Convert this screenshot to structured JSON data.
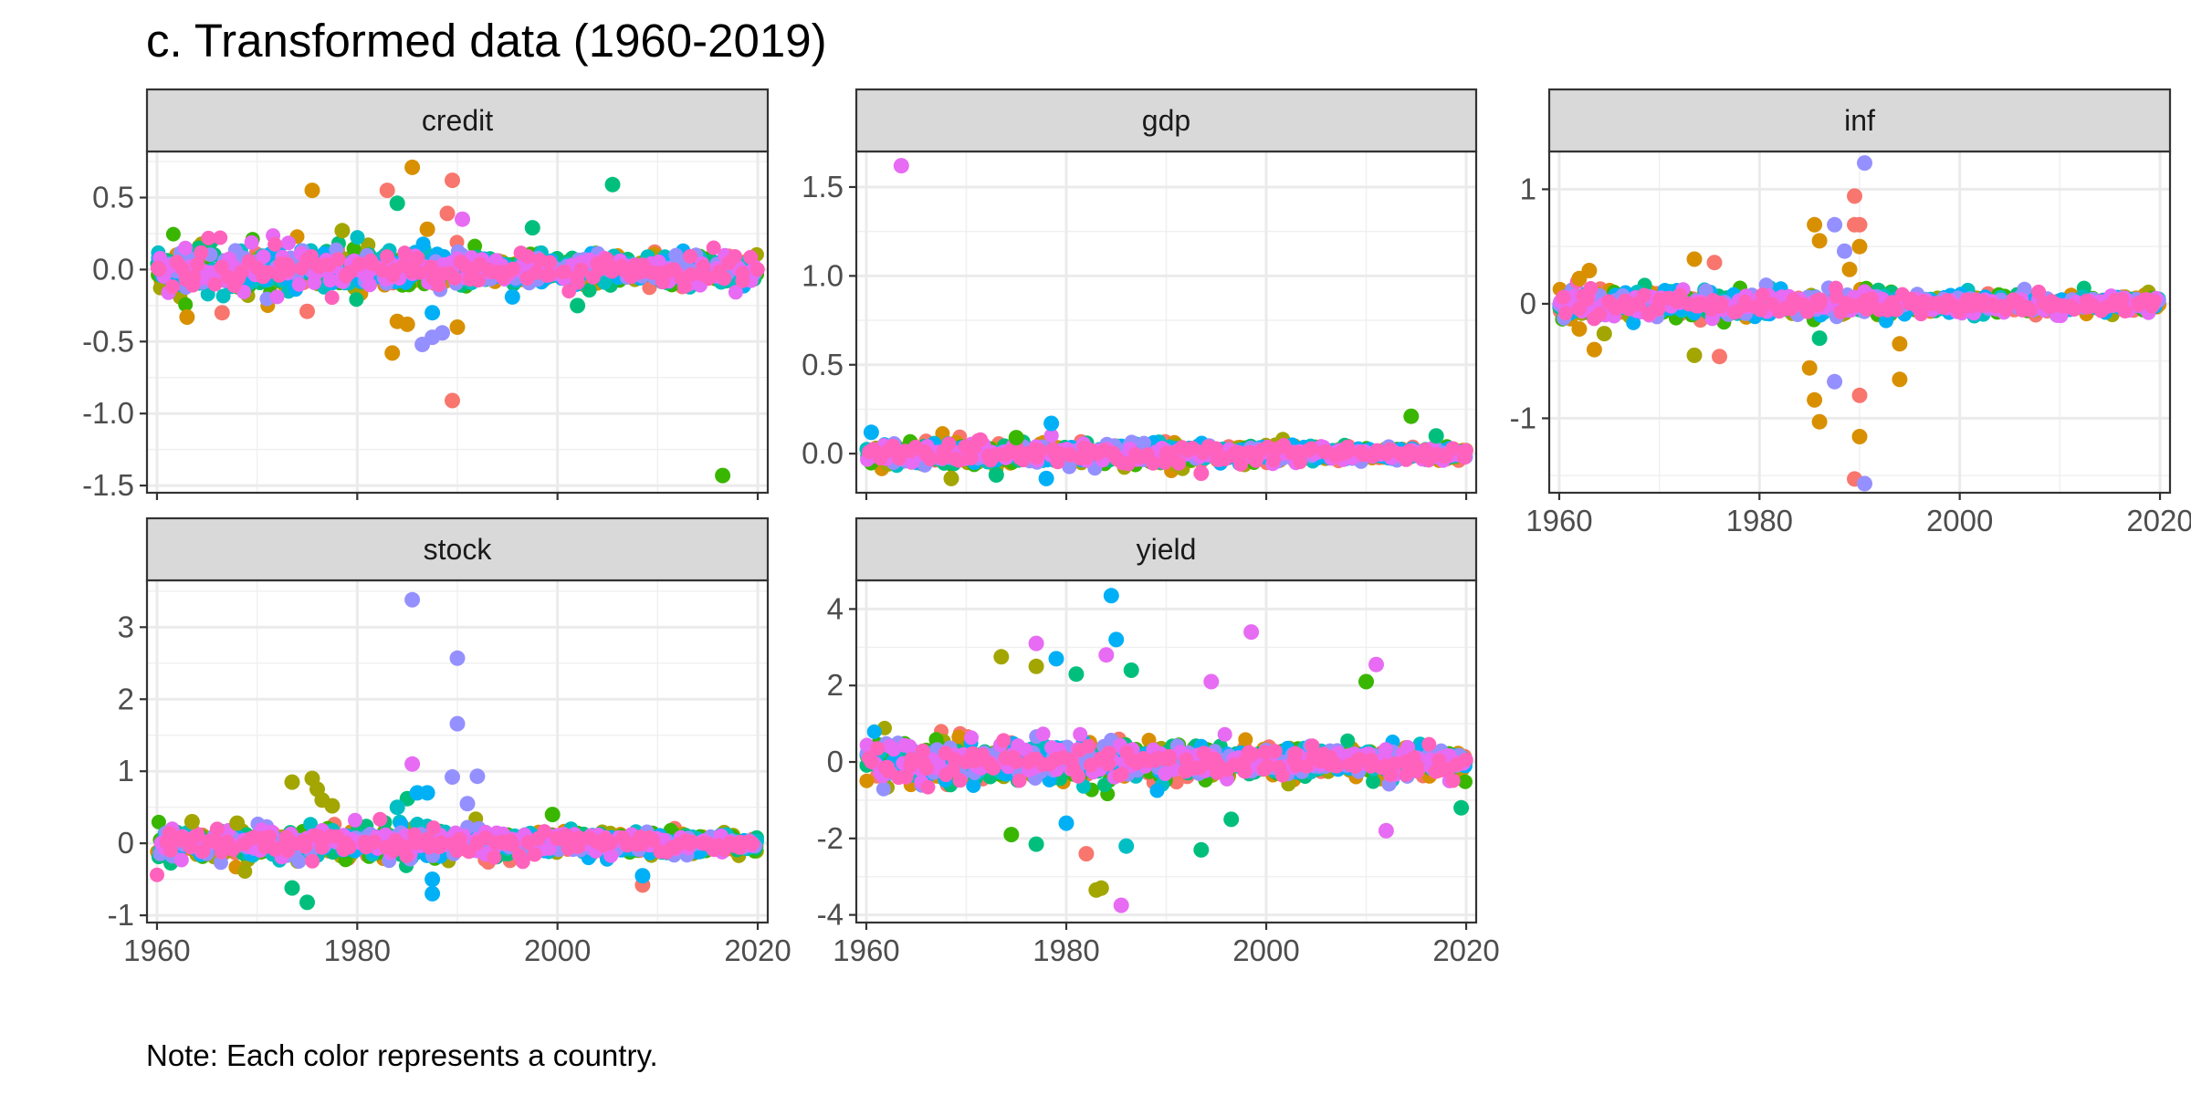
{
  "chart_data": {
    "type": "scatter",
    "title": "c. Transformed data (1960-2019)",
    "note": "Note: Each color represents a country.",
    "legend": "none",
    "grid": true,
    "x_ticks": [
      "1960",
      "1980",
      "2000",
      "2020"
    ],
    "x_tick_values": [
      1960,
      1980,
      2000,
      2020
    ],
    "xlim": [
      1959,
      2021
    ],
    "country_colors": [
      "#F8766D",
      "#D89000",
      "#A3A500",
      "#39B600",
      "#00BF7D",
      "#00BFC4",
      "#00B0F6",
      "#9590FF",
      "#E76BF3",
      "#FF62BC"
    ],
    "panels": [
      {
        "name": "credit",
        "ylim": [
          -1.55,
          0.82
        ],
        "y_ticks": [
          0.5,
          0.0,
          -0.5,
          -1.0,
          -1.5
        ],
        "y_tick_labels": [
          "0.5",
          "0.0",
          "-0.5",
          "-1.0",
          "-1.5"
        ],
        "band_sd": 0.07,
        "band_decay": 0.35,
        "outliers": [
          [
            1975.5,
            0.55,
            1
          ],
          [
            1983,
            0.55,
            0
          ],
          [
            1985.5,
            0.71,
            1
          ],
          [
            1989.5,
            0.62,
            0
          ],
          [
            2005.5,
            0.59,
            4
          ],
          [
            1984,
            0.46,
            4
          ],
          [
            1978.5,
            0.27,
            2
          ],
          [
            1997.5,
            0.29,
            4
          ],
          [
            1990.5,
            0.35,
            8
          ],
          [
            1989,
            0.39,
            0
          ],
          [
            1987,
            0.28,
            1
          ],
          [
            1963,
            -0.33,
            1
          ],
          [
            1983.5,
            -0.58,
            1
          ],
          [
            1986.5,
            -0.52,
            7
          ],
          [
            1987.5,
            -0.47,
            7
          ],
          [
            1988.5,
            -0.44,
            7
          ],
          [
            1987.5,
            -0.3,
            6
          ],
          [
            1989.5,
            -0.91,
            0
          ],
          [
            1990,
            -0.4,
            1
          ],
          [
            1985,
            -0.38,
            1
          ],
          [
            1984,
            -0.36,
            1
          ],
          [
            2016.5,
            -1.43,
            3
          ],
          [
            1966.5,
            -0.3,
            0
          ],
          [
            1975,
            -0.29,
            0
          ],
          [
            1995.5,
            -0.19,
            6
          ],
          [
            2002,
            -0.25,
            4
          ]
        ]
      },
      {
        "name": "gdp",
        "ylim": [
          -0.22,
          1.7
        ],
        "y_ticks": [
          1.5,
          1.0,
          0.5,
          0.0
        ],
        "y_tick_labels": [
          "1.5",
          "1.0",
          "0.5",
          "0.0"
        ],
        "band_sd": 0.028,
        "band_decay": 0.1,
        "outliers": [
          [
            1963.5,
            1.62,
            8
          ],
          [
            1978.5,
            0.17,
            6
          ],
          [
            2014.5,
            0.21,
            3
          ],
          [
            1960.5,
            0.12,
            6
          ],
          [
            1978,
            -0.14,
            6
          ],
          [
            1968.5,
            -0.14,
            2
          ],
          [
            1973,
            -0.12,
            4
          ],
          [
            1993.5,
            -0.11,
            9
          ],
          [
            2017,
            0.1,
            4
          ],
          [
            1975,
            0.09,
            3
          ]
        ]
      },
      {
        "name": "inf",
        "ylim": [
          -1.65,
          1.33
        ],
        "y_ticks": [
          1,
          0,
          -1
        ],
        "y_tick_labels": [
          "1",
          "0",
          "-1"
        ],
        "band_sd": 0.05,
        "band_decay": 0.4,
        "outliers": [
          [
            1962,
            0.22,
            1
          ],
          [
            1963,
            0.29,
            1
          ],
          [
            1962,
            -0.22,
            1
          ],
          [
            1963.5,
            -0.4,
            1
          ],
          [
            1964.5,
            -0.26,
            2
          ],
          [
            1973.5,
            0.39,
            1
          ],
          [
            1975.5,
            0.36,
            0
          ],
          [
            1973.5,
            -0.45,
            2
          ],
          [
            1976,
            -0.46,
            0
          ],
          [
            1985.5,
            0.69,
            1
          ],
          [
            1986,
            0.55,
            1
          ],
          [
            1987.5,
            0.69,
            7
          ],
          [
            1988.5,
            0.46,
            7
          ],
          [
            1989.5,
            0.94,
            0
          ],
          [
            1989.5,
            0.69,
            0
          ],
          [
            1990,
            0.69,
            0
          ],
          [
            1990.5,
            1.23,
            7
          ],
          [
            1985,
            -0.56,
            1
          ],
          [
            1985.5,
            -0.84,
            1
          ],
          [
            1986,
            -1.03,
            1
          ],
          [
            1987.5,
            -0.68,
            7
          ],
          [
            1989.5,
            -1.53,
            0
          ],
          [
            1990.5,
            -1.57,
            7
          ],
          [
            1990,
            -1.16,
            1
          ],
          [
            1990,
            -0.8,
            0
          ],
          [
            1994,
            -0.66,
            1
          ],
          [
            1994,
            -0.35,
            1
          ],
          [
            1990,
            0.5,
            1
          ],
          [
            1989,
            0.3,
            1
          ],
          [
            1986,
            -0.3,
            4
          ]
        ]
      },
      {
        "name": "stock",
        "ylim": [
          -1.1,
          3.65
        ],
        "y_ticks": [
          3,
          2,
          1,
          0,
          -1
        ],
        "y_tick_labels": [
          "3",
          "2",
          "1",
          "0",
          "-1"
        ],
        "band_sd": 0.1,
        "band_decay": 0.5,
        "outliers": [
          [
            1985.5,
            3.38,
            7
          ],
          [
            1990,
            2.57,
            7
          ],
          [
            1990,
            1.66,
            7
          ],
          [
            1985.5,
            1.1,
            8
          ],
          [
            1989.5,
            0.92,
            7
          ],
          [
            1992,
            0.93,
            7
          ],
          [
            1973.5,
            0.85,
            2
          ],
          [
            1975.5,
            0.9,
            2
          ],
          [
            1976,
            0.75,
            2
          ],
          [
            1976.5,
            0.6,
            2
          ],
          [
            1977.5,
            0.52,
            2
          ],
          [
            1985,
            0.62,
            4
          ],
          [
            1986,
            0.7,
            6
          ],
          [
            1987,
            0.7,
            6
          ],
          [
            1973.5,
            -0.62,
            4
          ],
          [
            1975,
            -0.82,
            4
          ],
          [
            1987.5,
            -0.7,
            6
          ],
          [
            1987.5,
            -0.5,
            6
          ],
          [
            2008.5,
            -0.58,
            0
          ],
          [
            2008.5,
            -0.45,
            6
          ],
          [
            1999.5,
            0.4,
            3
          ],
          [
            1963.5,
            0.3,
            2
          ],
          [
            1968,
            0.28,
            2
          ],
          [
            1991,
            0.55,
            7
          ],
          [
            1984,
            0.5,
            5
          ]
        ]
      },
      {
        "name": "yield",
        "ylim": [
          -4.2,
          4.75
        ],
        "y_ticks": [
          4,
          2,
          0,
          -2,
          -4
        ],
        "y_tick_labels": [
          "4",
          "2",
          "0",
          "-2",
          "-4"
        ],
        "band_sd": 0.25,
        "band_decay": 1.5,
        "outliers": [
          [
            1984.5,
            4.35,
            6
          ],
          [
            1998.5,
            3.4,
            8
          ],
          [
            1985,
            3.2,
            6
          ],
          [
            1977,
            3.1,
            8
          ],
          [
            1984,
            2.8,
            8
          ],
          [
            1973.5,
            2.75,
            2
          ],
          [
            1977,
            2.5,
            2
          ],
          [
            1979,
            2.7,
            6
          ],
          [
            1986.5,
            2.4,
            4
          ],
          [
            2011,
            2.55,
            8
          ],
          [
            2010,
            2.1,
            3
          ],
          [
            1981,
            2.3,
            4
          ],
          [
            1994.5,
            2.1,
            8
          ],
          [
            1985.5,
            -3.75,
            8
          ],
          [
            1983.5,
            -3.3,
            2
          ],
          [
            1983,
            -3.35,
            2
          ],
          [
            1993.5,
            -2.3,
            4
          ],
          [
            1986,
            -2.2,
            5
          ],
          [
            1977,
            -2.15,
            4
          ],
          [
            2012,
            -1.8,
            8
          ],
          [
            2019.5,
            -1.2,
            4
          ],
          [
            1982,
            -2.4,
            0
          ],
          [
            1974.5,
            -1.9,
            3
          ],
          [
            1996.5,
            -1.5,
            4
          ],
          [
            1980,
            -1.6,
            6
          ]
        ]
      }
    ]
  }
}
